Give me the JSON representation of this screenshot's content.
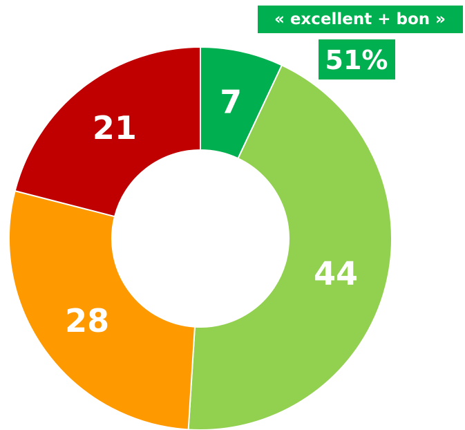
{
  "chart_data": {
    "type": "donut",
    "values": [
      7,
      44,
      28,
      21
    ],
    "colors": [
      "#00b050",
      "#92d050",
      "#ff9900",
      "#c00000"
    ],
    "annotations": [
      "« excellent + bon »",
      "51%"
    ]
  }
}
